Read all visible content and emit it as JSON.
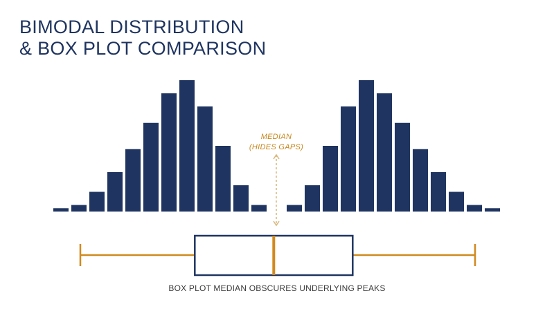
{
  "title": {
    "line1": "BIMODAL DISTRIBUTION",
    "line2": "& BOX PLOT COMPARISON"
  },
  "annotation": {
    "line1": "MEDIAN",
    "line2": "(HIDES GAPS)"
  },
  "caption": "BOX PLOT MEDIAN OBSCURES UNDERLYING PEAKS",
  "colors": {
    "bars": "#1f3460",
    "box_outline": "#1f3460",
    "whisker": "#d08a1e",
    "median": "#d08a1e",
    "annotation": "#c8861b"
  },
  "chart_data": [
    {
      "type": "bar",
      "name_visible": false,
      "left_cluster_counts": [
        1,
        2,
        6,
        12,
        19,
        27,
        36,
        40,
        32,
        20,
        8,
        2
      ],
      "right_cluster_counts": [
        2,
        8,
        20,
        32,
        40,
        36,
        27,
        19,
        12,
        6,
        2,
        1
      ],
      "gap_between_clusters": true
    },
    {
      "type": "box",
      "whisker_low": 0,
      "q1": 29,
      "median": 49,
      "q3": 69,
      "whisker_high": 100
    }
  ]
}
